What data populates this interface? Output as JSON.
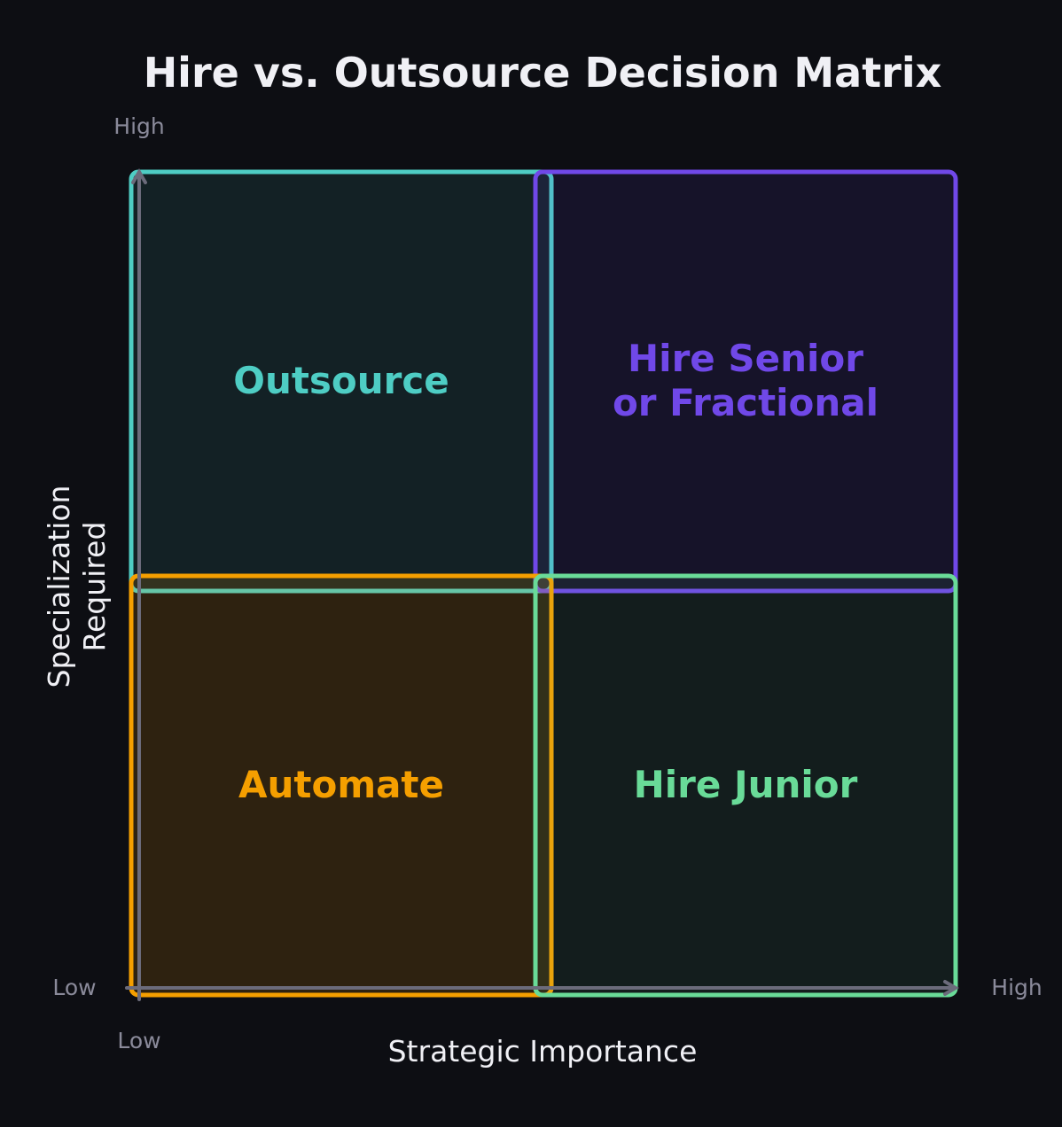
{
  "title": "Hire vs. Outsource Decision Matrix",
  "axes": {
    "x_label": "Strategic Importance",
    "y_label_line1": "Specialization",
    "y_label_line2": "Required",
    "y_high": "High",
    "y_low": "Low",
    "x_low": "Low",
    "x_high": "High"
  },
  "quadrants": [
    {
      "line1": "Outsource",
      "line2": "",
      "color": "#4ecdc4"
    },
    {
      "line1": "Hire Senior",
      "line2": "or Fractional",
      "color": "#7048e8"
    },
    {
      "line1": "Automate",
      "line2": "",
      "color": "#f59f00"
    },
    {
      "line1": "Hire Junior",
      "line2": "",
      "color": "#69db98"
    }
  ],
  "colors": {
    "background": "#0d0e13",
    "axis": "#6b6b7b",
    "muted_text": "#8a8a9a",
    "text": "#f0f0f5"
  }
}
